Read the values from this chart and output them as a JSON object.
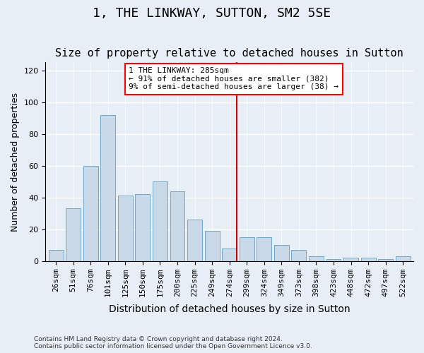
{
  "title": "1, THE LINKWAY, SUTTON, SM2 5SE",
  "subtitle": "Size of property relative to detached houses in Sutton",
  "xlabel": "Distribution of detached houses by size in Sutton",
  "ylabel": "Number of detached properties",
  "categories": [
    "26sqm",
    "51sqm",
    "76sqm",
    "101sqm",
    "125sqm",
    "150sqm",
    "175sqm",
    "200sqm",
    "225sqm",
    "249sqm",
    "274sqm",
    "299sqm",
    "324sqm",
    "349sqm",
    "373sqm",
    "398sqm",
    "423sqm",
    "448sqm",
    "472sqm",
    "497sqm",
    "522sqm"
  ],
  "values": [
    7,
    33,
    60,
    92,
    41,
    42,
    50,
    44,
    26,
    19,
    8,
    15,
    15,
    10,
    7,
    3,
    1,
    2,
    2,
    1,
    3
  ],
  "bar_color": "#c9d9e8",
  "bar_edge_color": "#6fa8c9",
  "background_color": "#e8eef5",
  "grid_color": "#ffffff",
  "vline_x": 10.4,
  "vline_color": "#cc0000",
  "annotation_box_text": "1 THE LINKWAY: 285sqm\n← 91% of detached houses are smaller (382)\n9% of semi-detached houses are larger (38) →",
  "ylim": [
    0,
    125
  ],
  "yticks": [
    0,
    20,
    40,
    60,
    80,
    100,
    120
  ],
  "footer_text": "Contains HM Land Registry data © Crown copyright and database right 2024.\nContains public sector information licensed under the Open Government Licence v3.0.",
  "title_fontsize": 13,
  "subtitle_fontsize": 11,
  "xlabel_fontsize": 10,
  "ylabel_fontsize": 9,
  "tick_fontsize": 8
}
